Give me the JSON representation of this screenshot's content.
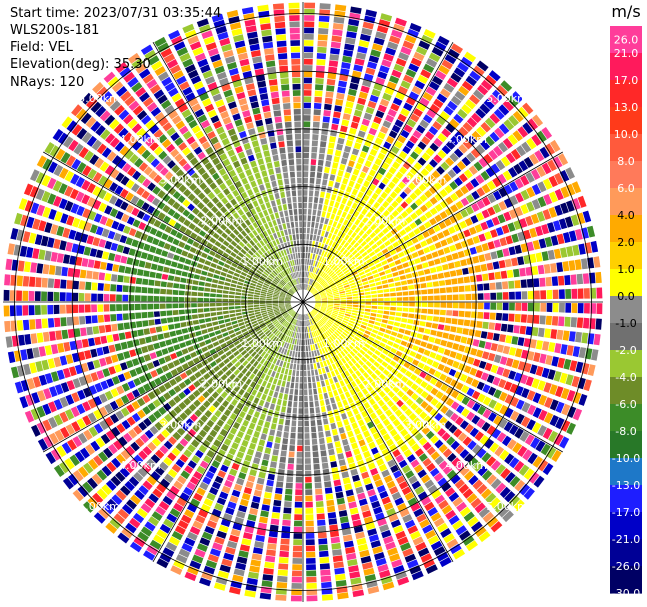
{
  "info": {
    "start_time": "Start time: 2023/07/31 03:35:44",
    "site": "WLS200s-181",
    "field": "Field: VEL",
    "elevation": "Elevation(deg): 35.30",
    "nrays": "NRays: 120"
  },
  "colorbar": {
    "unit": "m/s",
    "ticks": [
      "26.0",
      "21.0",
      "17.0",
      "13.0",
      "10.0",
      "8.0",
      "6.0",
      "4.0",
      "2.0",
      "1.0",
      "0.0",
      "-1.0",
      "-2.0",
      "-4.0",
      "-6.0",
      "-8.0",
      "-10.0",
      "-13.0",
      "-17.0",
      "-21.0",
      "-26.0",
      "-30.0"
    ],
    "colors": [
      "#ff3d9a",
      "#ff1a5c",
      "#ff2828",
      "#ff3a1a",
      "#ff5a3c",
      "#ff7a5a",
      "#ff9a5a",
      "#ffaa00",
      "#ffd000",
      "#ffff00",
      "#8c8c8c",
      "#707070",
      "#9ac832",
      "#6e8c28",
      "#3c8c28",
      "#287828",
      "#1e78c8",
      "#1e1eff",
      "#0000c8",
      "#000096",
      "#000064"
    ]
  },
  "range_rings": {
    "labels": [
      "1.00km",
      "2.00km",
      "3.00km",
      "4.00km",
      "5.00km"
    ]
  },
  "scan": {
    "max_range_km": 5.2,
    "range_gates": 48
  }
}
